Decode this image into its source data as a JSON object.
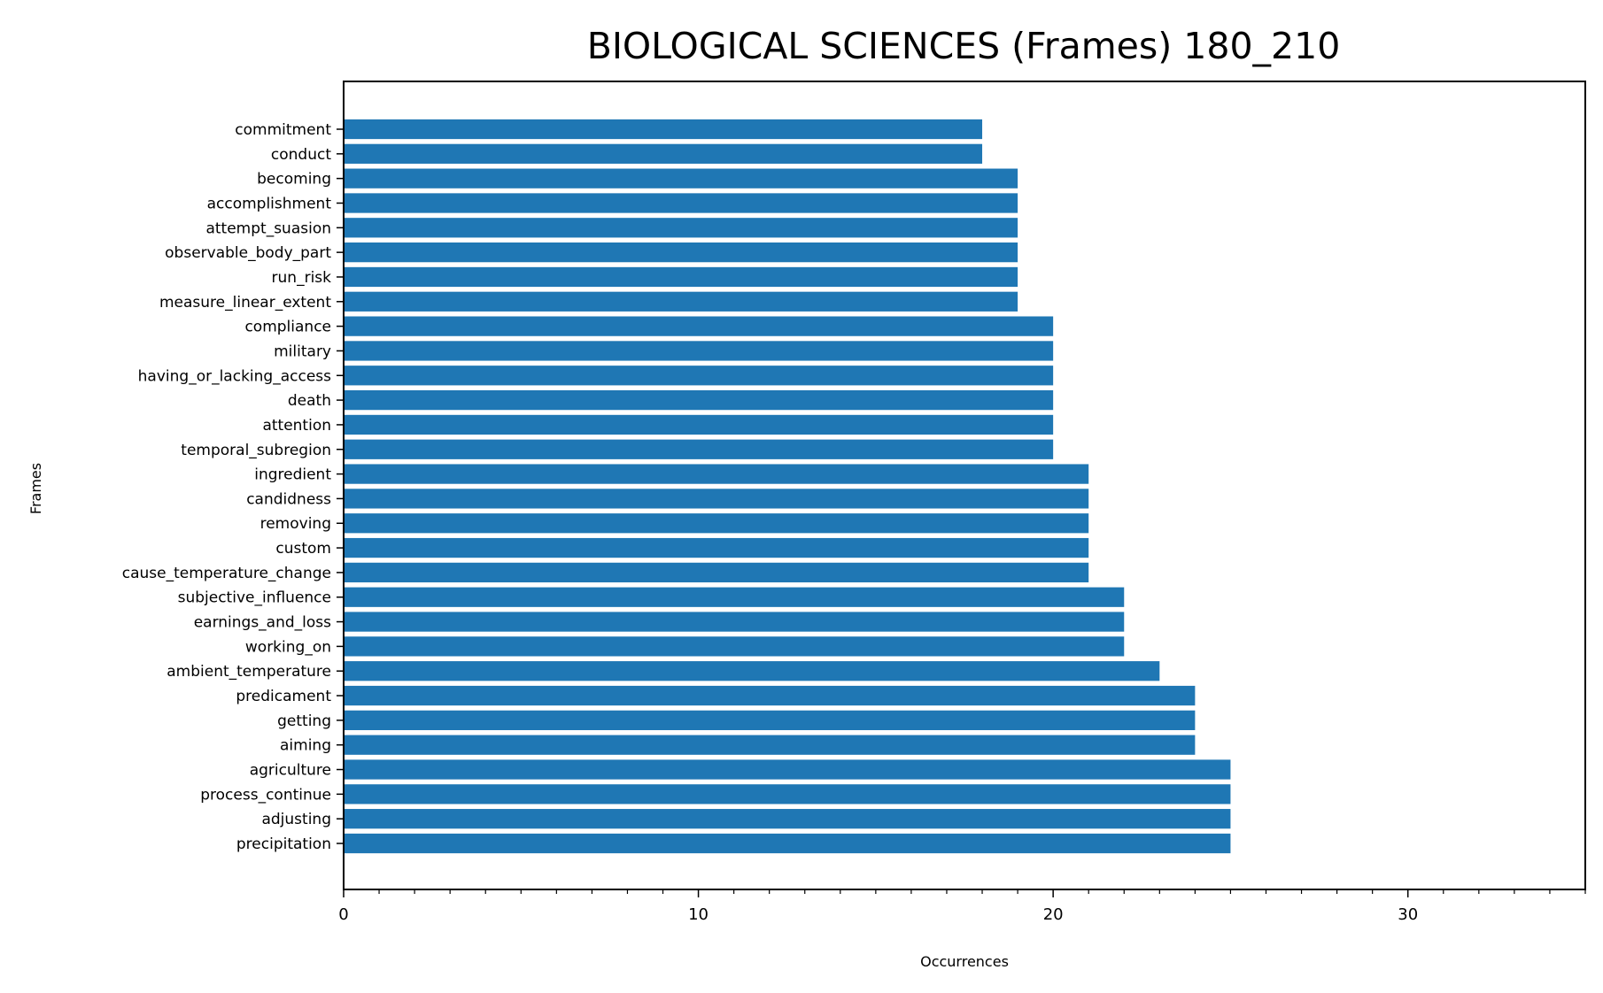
{
  "chart_data": {
    "type": "bar",
    "orientation": "horizontal",
    "title": "BIOLOGICAL SCIENCES (Frames) 180_210",
    "xlabel": "Occurrences",
    "ylabel": "Frames",
    "xlim": [
      0,
      35
    ],
    "xticks": [
      0,
      10,
      20,
      30
    ],
    "minor_tick_step": 1,
    "grid": false,
    "bar_color": "#1f77b4",
    "categories": [
      "commitment",
      "conduct",
      "becoming",
      "accomplishment",
      "attempt_suasion",
      "observable_body_part",
      "run_risk",
      "measure_linear_extent",
      "compliance",
      "military",
      "having_or_lacking_access",
      "death",
      "attention",
      "temporal_subregion",
      "ingredient",
      "candidness",
      "removing",
      "custom",
      "cause_temperature_change",
      "subjective_influence",
      "earnings_and_loss",
      "working_on",
      "ambient_temperature",
      "predicament",
      "getting",
      "aiming",
      "agriculture",
      "process_continue",
      "adjusting",
      "precipitation"
    ],
    "values": [
      18,
      18,
      19,
      19,
      19,
      19,
      19,
      19,
      20,
      20,
      20,
      20,
      20,
      20,
      21,
      21,
      21,
      21,
      21,
      22,
      22,
      22,
      23,
      24,
      24,
      24,
      25,
      25,
      25,
      25
    ]
  }
}
